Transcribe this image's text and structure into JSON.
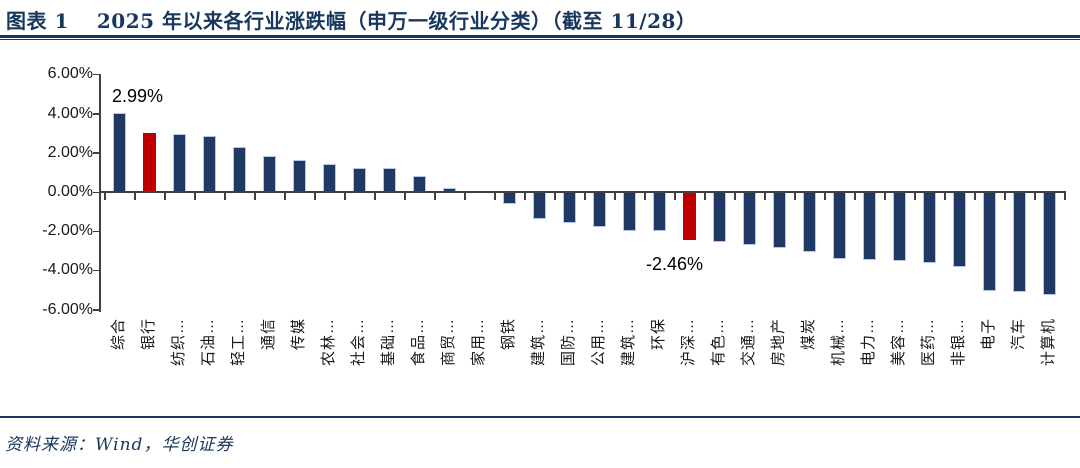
{
  "header": {
    "figure_label": "图表 1",
    "title": "2025 年以来各行业涨跌幅（申万一级行业分类）（截至 11/28）"
  },
  "footer": {
    "source": "资料来源：Wind，华创证券"
  },
  "colors": {
    "bar_navy": "#1F3864",
    "bar_border": "#B4C7E7",
    "bar_highlight_red": "#C00000",
    "title_navy": "#17375E",
    "axis_gray": "#404040"
  },
  "chart_data": {
    "type": "bar",
    "title": "2025 年以来各行业涨跌幅（申万一级行业分类）（截至 11/28）",
    "xlabel": "",
    "ylabel": "",
    "ylim": [
      -6,
      6
    ],
    "grid": false,
    "legend": "none",
    "yticks": [
      {
        "label": "6.00%",
        "value": 6
      },
      {
        "label": "4.00%",
        "value": 4
      },
      {
        "label": "2.00%",
        "value": 2
      },
      {
        "label": "0.00%",
        "value": 0
      },
      {
        "label": "-2.00%",
        "value": -2
      },
      {
        "label": "-4.00%",
        "value": -4
      },
      {
        "label": "-6.00%",
        "value": -6
      }
    ],
    "categories": [
      "综合",
      "银行",
      "纺织…",
      "石油…",
      "轻工…",
      "通信",
      "传媒",
      "农林…",
      "社会…",
      "基础…",
      "食品…",
      "商贸…",
      "家用…",
      "钢铁",
      "建筑…",
      "国防…",
      "公用…",
      "建筑…",
      "环保",
      "沪深…",
      "有色…",
      "交通…",
      "房地产",
      "煤炭",
      "机械…",
      "电力…",
      "美容…",
      "医药…",
      "非银…",
      "电子",
      "汽车",
      "计算机"
    ],
    "values": [
      4.05,
      2.99,
      2.95,
      2.88,
      2.3,
      1.86,
      1.62,
      1.45,
      1.24,
      1.23,
      0.82,
      0.2,
      0.06,
      -0.62,
      -1.38,
      -1.58,
      -1.78,
      -1.99,
      -2.0,
      -2.46,
      -2.54,
      -2.71,
      -2.86,
      -3.04,
      -3.4,
      -3.49,
      -3.54,
      -3.6,
      -3.82,
      -5.03,
      -5.08,
      -5.23
    ],
    "unit": "%",
    "highlight_indices": [
      1,
      19
    ],
    "annotations": [
      {
        "bar_index": 1,
        "text": "2.99%",
        "placement": "above"
      },
      {
        "bar_index": 19,
        "text": "-2.46%",
        "placement": "below"
      }
    ]
  }
}
